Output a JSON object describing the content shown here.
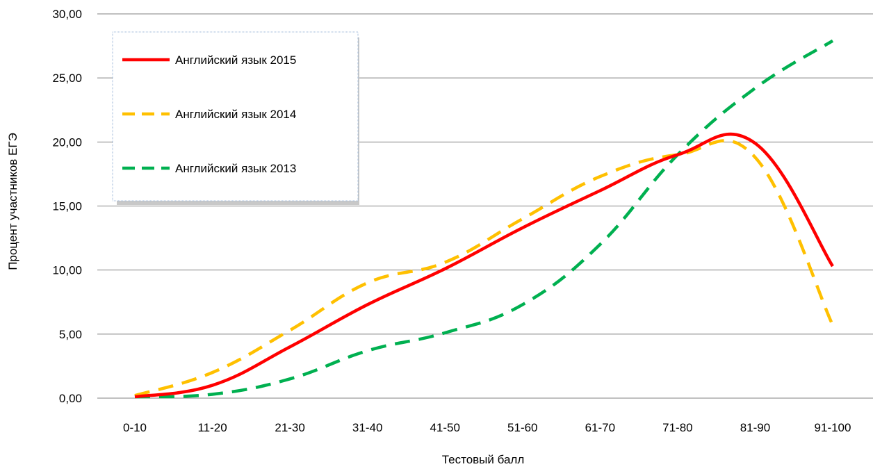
{
  "chart_data": {
    "type": "line",
    "categories": [
      "0-10",
      "11-20",
      "21-30",
      "31-40",
      "41-50",
      "51-60",
      "61-70",
      "71-80",
      "81-90",
      "91-100"
    ],
    "series": [
      {
        "name": "Английский язык 2015",
        "color": "#ff0000",
        "dash": "solid",
        "values": [
          0.1,
          1.0,
          4.0,
          7.3,
          10.1,
          13.3,
          16.2,
          19.0,
          19.9,
          10.3
        ]
      },
      {
        "name": "Английский язык 2014",
        "color": "#ffc000",
        "dash": "dashed",
        "values": [
          0.2,
          2.0,
          5.3,
          9.0,
          10.6,
          14.0,
          17.3,
          19.0,
          18.8,
          5.7
        ]
      },
      {
        "name": "Английский язык 2013",
        "color": "#00b050",
        "dash": "dashed",
        "values": [
          0.1,
          0.3,
          1.5,
          3.7,
          5.1,
          7.3,
          12.0,
          19.0,
          24.2,
          27.9
        ]
      }
    ],
    "xlabel": "Тестовый балл",
    "ylabel": "Процент участников ЕГЭ",
    "yticks": [
      "0,00",
      "5,00",
      "10,00",
      "15,00",
      "20,00",
      "25,00",
      "30,00"
    ],
    "ylim": [
      0,
      30
    ],
    "grid": true,
    "legend_position": "top-left"
  }
}
